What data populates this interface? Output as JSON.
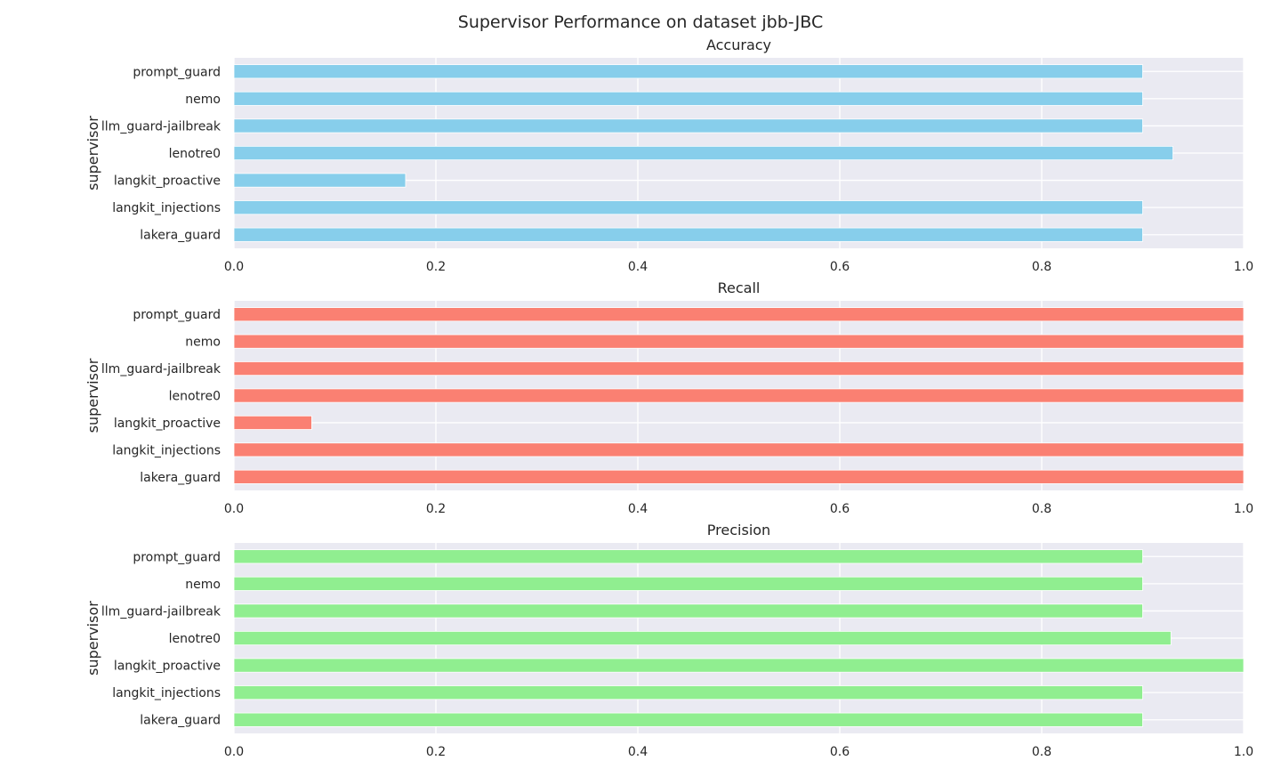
{
  "chart_data": [
    {
      "type": "bar",
      "orientation": "horizontal",
      "suptitle": "Supervisor Performance on dataset jbb-JBC",
      "title": "Accuracy",
      "ylabel": "supervisor",
      "xlabel": "",
      "xlim": [
        0,
        1
      ],
      "xticks": [
        "0.0",
        "0.2",
        "0.4",
        "0.6",
        "0.8",
        "1.0"
      ],
      "grid": true,
      "color": "#87CEEB",
      "categories": [
        "prompt_guard",
        "nemo",
        "llm_guard-jailbreak",
        "lenotre0",
        "langkit_proactive",
        "langkit_injections",
        "lakera_guard"
      ],
      "values": [
        0.9,
        0.9,
        0.9,
        0.93,
        0.17,
        0.9,
        0.9
      ]
    },
    {
      "type": "bar",
      "orientation": "horizontal",
      "title": "Recall",
      "ylabel": "supervisor",
      "xlabel": "",
      "xlim": [
        0,
        1
      ],
      "xticks": [
        "0.0",
        "0.2",
        "0.4",
        "0.6",
        "0.8",
        "1.0"
      ],
      "grid": true,
      "color": "#FA8072",
      "categories": [
        "prompt_guard",
        "nemo",
        "llm_guard-jailbreak",
        "lenotre0",
        "langkit_proactive",
        "langkit_injections",
        "lakera_guard"
      ],
      "values": [
        1.0,
        1.0,
        1.0,
        1.0,
        0.077,
        1.0,
        1.0
      ]
    },
    {
      "type": "bar",
      "orientation": "horizontal",
      "title": "Precision",
      "ylabel": "supervisor",
      "xlabel": "",
      "xlim": [
        0,
        1
      ],
      "xticks": [
        "0.0",
        "0.2",
        "0.4",
        "0.6",
        "0.8",
        "1.0"
      ],
      "grid": true,
      "color": "#90EE90",
      "categories": [
        "prompt_guard",
        "nemo",
        "llm_guard-jailbreak",
        "lenotre0",
        "langkit_proactive",
        "langkit_injections",
        "lakera_guard"
      ],
      "values": [
        0.9,
        0.9,
        0.9,
        0.928,
        1.0,
        0.9,
        0.9
      ]
    }
  ]
}
